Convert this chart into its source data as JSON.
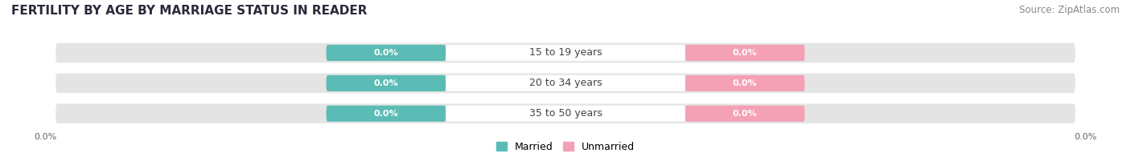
{
  "title": "FERTILITY BY AGE BY MARRIAGE STATUS IN READER",
  "source": "Source: ZipAtlas.com",
  "categories": [
    "15 to 19 years",
    "20 to 34 years",
    "35 to 50 years"
  ],
  "married_values": [
    0.0,
    0.0,
    0.0
  ],
  "unmarried_values": [
    0.0,
    0.0,
    0.0
  ],
  "married_color": "#5bbcb5",
  "unmarried_color": "#f4a0b5",
  "bar_bg_color": "#e4e4e4",
  "legend_married": "Married",
  "legend_unmarried": "Unmarried",
  "title_fontsize": 11,
  "source_fontsize": 8.5,
  "value_fontsize": 8,
  "category_fontsize": 9,
  "legend_fontsize": 9,
  "tick_fontsize": 8,
  "figsize": [
    14.06,
    1.96
  ],
  "dpi": 100
}
